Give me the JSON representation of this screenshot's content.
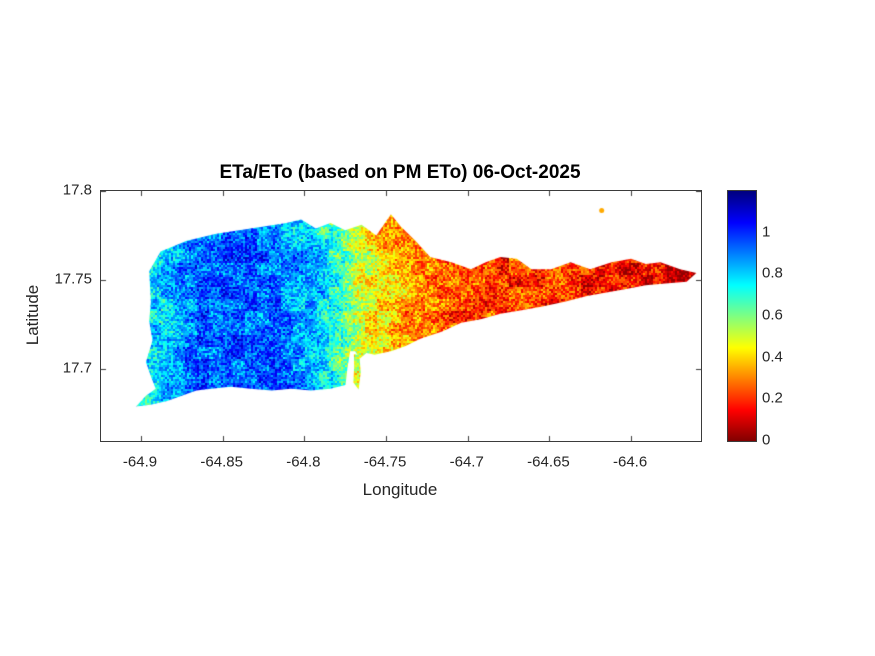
{
  "figure": {
    "title": "ETa/ETo (based on PM ETo) 06-Oct-2025",
    "xlabel": "Longitude",
    "ylabel": "Latitude"
  },
  "ticks": {
    "x_labels": [
      "-64.9",
      "-64.85",
      "-64.8",
      "-64.75",
      "-64.7",
      "-64.65",
      "-64.6"
    ],
    "y_labels": [
      "17.8",
      "17.75",
      "17.7"
    ],
    "cbar_labels": [
      "0",
      "0.2",
      "0.4",
      "0.6",
      "0.8",
      "1"
    ]
  },
  "chart_data": {
    "type": "heatmap",
    "title": "ETa/ETo (based on PM ETo) 06-Oct-2025",
    "xlabel": "Longitude",
    "ylabel": "Latitude",
    "xlim": [
      -64.9245,
      -64.5572
    ],
    "ylim": [
      17.6596,
      17.8
    ],
    "xticks": [
      -64.9,
      -64.85,
      -64.8,
      -64.75,
      -64.7,
      -64.65,
      -64.6
    ],
    "yticks": [
      17.8,
      17.75,
      17.7
    ],
    "grid": false,
    "legend": null,
    "colormap": "jet-reversed (high values dark blue, low values dark red)",
    "colorbar": {
      "min": 0,
      "max": 1.2,
      "ticks": [
        0,
        0.2,
        0.4,
        0.6,
        0.8,
        1
      ],
      "position": "right"
    },
    "value_profile_by_longitude": {
      "longitudes": [
        -64.91,
        -64.885,
        -64.865,
        -64.84,
        -64.815,
        -64.795,
        -64.778,
        -64.768,
        -64.757,
        -64.745,
        -64.73,
        -64.71,
        -64.69,
        -64.66,
        -64.63,
        -64.6,
        -64.58,
        -64.555
      ],
      "values": [
        0.7,
        0.82,
        0.92,
        0.95,
        0.92,
        0.85,
        0.68,
        0.52,
        0.45,
        0.38,
        0.3,
        0.24,
        0.22,
        0.2,
        0.17,
        0.14,
        0.11,
        0.06
      ]
    },
    "island_outline": [
      [
        -64.895,
        17.755
      ],
      [
        -64.888,
        17.766
      ],
      [
        -64.872,
        17.772
      ],
      [
        -64.854,
        17.776
      ],
      [
        -64.833,
        17.779
      ],
      [
        -64.811,
        17.782
      ],
      [
        -64.802,
        17.784
      ],
      [
        -64.793,
        17.779
      ],
      [
        -64.784,
        17.782
      ],
      [
        -64.775,
        17.778
      ],
      [
        -64.765,
        17.781
      ],
      [
        -64.756,
        17.775
      ],
      [
        -64.747,
        17.787
      ],
      [
        -64.741,
        17.78
      ],
      [
        -64.732,
        17.772
      ],
      [
        -64.723,
        17.763
      ],
      [
        -64.71,
        17.76
      ],
      [
        -64.698,
        17.756
      ],
      [
        -64.689,
        17.76
      ],
      [
        -64.68,
        17.763
      ],
      [
        -64.67,
        17.762
      ],
      [
        -64.661,
        17.756
      ],
      [
        -64.649,
        17.756
      ],
      [
        -64.637,
        17.76
      ],
      [
        -64.625,
        17.756
      ],
      [
        -64.612,
        17.76
      ],
      [
        -64.6,
        17.762
      ],
      [
        -64.591,
        17.759
      ],
      [
        -64.582,
        17.76
      ],
      [
        -64.57,
        17.756
      ],
      [
        -64.56,
        17.754
      ],
      [
        -64.566,
        17.749
      ],
      [
        -64.579,
        17.748
      ],
      [
        -64.591,
        17.747
      ],
      [
        -64.603,
        17.745
      ],
      [
        -64.615,
        17.743
      ],
      [
        -64.627,
        17.741
      ],
      [
        -64.64,
        17.738
      ],
      [
        -64.655,
        17.735
      ],
      [
        -64.667,
        17.733
      ],
      [
        -64.68,
        17.731
      ],
      [
        -64.692,
        17.728
      ],
      [
        -64.704,
        17.726
      ],
      [
        -64.716,
        17.721
      ],
      [
        -64.729,
        17.717
      ],
      [
        -64.738,
        17.713
      ],
      [
        -64.747,
        17.71
      ],
      [
        -64.757,
        17.708
      ],
      [
        -64.762,
        17.709
      ],
      [
        -64.766,
        17.706
      ],
      [
        -64.769,
        17.71
      ],
      [
        -64.772,
        17.71
      ],
      [
        -64.7737,
        17.7
      ],
      [
        -64.7748,
        17.691
      ],
      [
        -64.784,
        17.689
      ],
      [
        -64.796,
        17.688
      ],
      [
        -64.808,
        17.689
      ],
      [
        -64.82,
        17.688
      ],
      [
        -64.833,
        17.689
      ],
      [
        -64.845,
        17.69
      ],
      [
        -64.857,
        17.689
      ],
      [
        -64.866,
        17.688
      ],
      [
        -64.875,
        17.685
      ],
      [
        -64.884,
        17.682
      ],
      [
        -64.894,
        17.68
      ],
      [
        -64.903,
        17.679
      ],
      [
        -64.897,
        17.685
      ],
      [
        -64.891,
        17.689
      ],
      [
        -64.894,
        17.696
      ],
      [
        -64.897,
        17.704
      ],
      [
        -64.893,
        17.716
      ],
      [
        -64.895,
        17.727
      ],
      [
        -64.894,
        17.738
      ]
    ],
    "islets": [
      {
        "outline": [
          [
            -64.7697,
            17.7085
          ],
          [
            -64.7663,
            17.7078
          ],
          [
            -64.7655,
            17.698
          ],
          [
            -64.7668,
            17.6885
          ],
          [
            -64.77,
            17.6925
          ],
          [
            -64.7695,
            17.702
          ]
        ],
        "value": 0.5
      },
      {
        "point": [
          -64.618,
          17.789
        ],
        "value": 0.35,
        "radius_px": 2.5
      }
    ]
  }
}
